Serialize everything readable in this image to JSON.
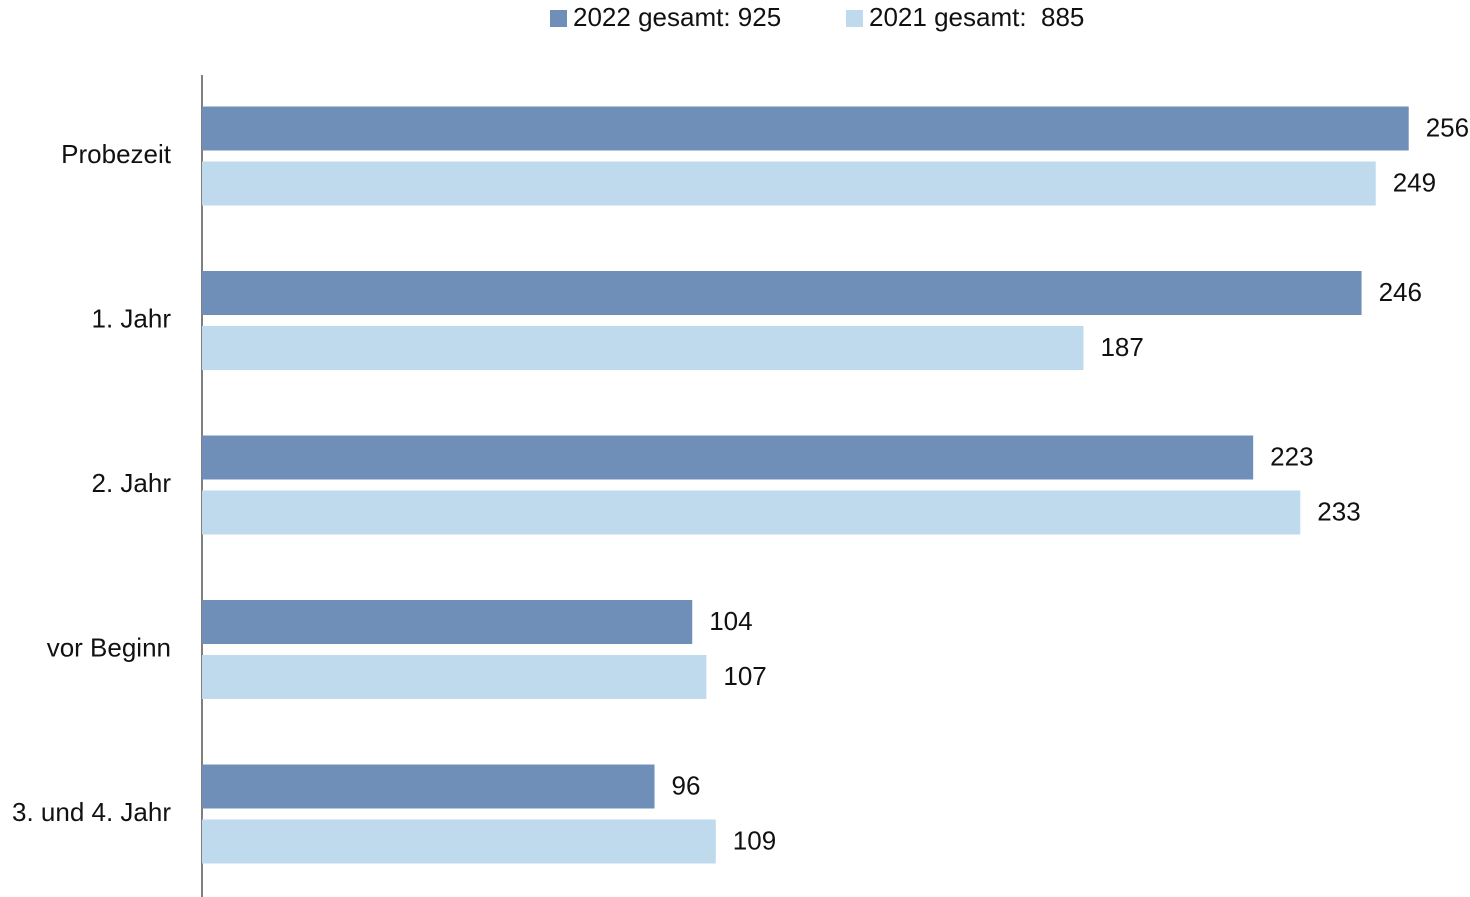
{
  "chart_data": {
    "type": "bar",
    "orientation": "horizontal",
    "categories": [
      "Probezeit",
      "1. Jahr",
      "2. Jahr",
      "vor Beginn",
      "3. und 4. Jahr"
    ],
    "series": [
      {
        "name": "2022 gesamt: 925",
        "color": "#6f8fb8",
        "values": [
          256,
          246,
          223,
          104,
          96
        ]
      },
      {
        "name": "2021 gesamt:  885",
        "color": "#bfdaec",
        "values": [
          249,
          187,
          233,
          107,
          109
        ]
      }
    ],
    "xlim": [
      0,
      269
    ],
    "legend": "top",
    "grid": false
  }
}
